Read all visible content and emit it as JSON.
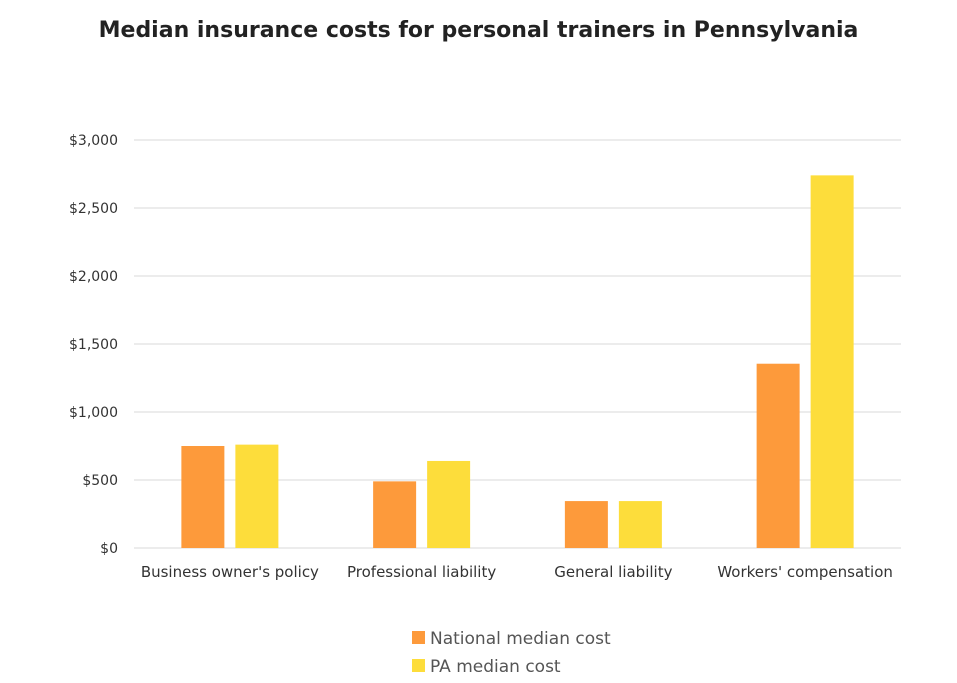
{
  "chart_data": {
    "type": "bar",
    "title": "Median insurance costs for personal trainers in Pennsylvania",
    "categories": [
      "Business owner's policy",
      "Professional liability",
      "General liability",
      "Workers' compensation"
    ],
    "series": [
      {
        "name": "National median cost",
        "color": "#fd9a3b",
        "values": [
          750,
          490,
          345,
          1355
        ]
      },
      {
        "name": "PA median cost",
        "color": "#fddd3b",
        "values": [
          760,
          640,
          345,
          2740
        ]
      }
    ],
    "y_ticks": [
      "$0",
      "$500",
      "$1,000",
      "$1,500",
      "$2,000",
      "$2,500",
      "$3,000"
    ],
    "y_tick_values": [
      0,
      500,
      1000,
      1500,
      2000,
      2500,
      3000
    ],
    "ylim": [
      0,
      3000
    ],
    "grid": true,
    "legend_position": "bottom"
  }
}
